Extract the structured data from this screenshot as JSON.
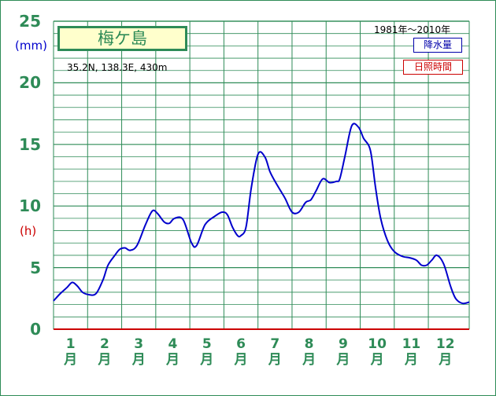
{
  "chart_data": {
    "type": "line",
    "title": "梅ケ島",
    "location_info": "35.2N,  138.3E,  430m",
    "period": "1981年〜2010年",
    "left_units": [
      "(mm)",
      "(h)"
    ],
    "legend": [
      "降水量",
      "日照時間"
    ],
    "yticks": [
      "0",
      "5",
      "10",
      "15",
      "20",
      "25"
    ],
    "ylim": [
      0,
      25
    ],
    "xlim": [
      0.5,
      12.7
    ],
    "grid": true,
    "categories": [
      {
        "num": "1",
        "suffix": "月"
      },
      {
        "num": "2",
        "suffix": "月"
      },
      {
        "num": "3",
        "suffix": "月"
      },
      {
        "num": "4",
        "suffix": "月"
      },
      {
        "num": "5",
        "suffix": "月"
      },
      {
        "num": "6",
        "suffix": "月"
      },
      {
        "num": "7",
        "suffix": "月"
      },
      {
        "num": "8",
        "suffix": "月"
      },
      {
        "num": "9",
        "suffix": "月"
      },
      {
        "num": "10",
        "suffix": "月"
      },
      {
        "num": "11",
        "suffix": "月"
      },
      {
        "num": "12",
        "suffix": "月"
      }
    ],
    "series": [
      {
        "name": "降水量",
        "color": "#0000cc",
        "x": [
          0.5,
          0.7,
          0.9,
          1.05,
          1.2,
          1.35,
          1.55,
          1.75,
          1.95,
          2.1,
          2.3,
          2.45,
          2.6,
          2.75,
          2.95,
          3.2,
          3.4,
          3.55,
          3.75,
          3.9,
          4.05,
          4.3,
          4.55,
          4.7,
          4.95,
          5.25,
          5.45,
          5.6,
          5.75,
          5.9,
          6.0,
          6.15,
          6.3,
          6.5,
          6.7,
          6.85,
          7.0,
          7.15,
          7.3,
          7.5,
          7.7,
          7.9,
          8.05,
          8.2,
          8.4,
          8.6,
          8.8,
          8.9,
          9.05,
          9.25,
          9.45,
          9.6,
          9.8,
          9.95,
          10.1,
          10.3,
          10.5,
          10.75,
          10.95,
          11.15,
          11.3,
          11.45,
          11.6,
          11.75,
          11.95,
          12.15,
          12.3,
          12.5,
          12.7
        ],
        "values": [
          2.3,
          2.9,
          3.4,
          3.8,
          3.5,
          3.0,
          2.8,
          2.9,
          4.0,
          5.2,
          6.0,
          6.5,
          6.6,
          6.4,
          6.8,
          8.5,
          9.6,
          9.4,
          8.7,
          8.6,
          9.0,
          8.9,
          7.0,
          6.8,
          8.5,
          9.2,
          9.5,
          9.3,
          8.3,
          7.6,
          7.6,
          8.3,
          11.4,
          14.2,
          14.0,
          12.8,
          12.0,
          11.3,
          10.6,
          9.5,
          9.5,
          10.3,
          10.5,
          11.2,
          12.2,
          11.9,
          12.0,
          12.2,
          14.0,
          16.5,
          16.4,
          15.5,
          14.5,
          11.5,
          9.0,
          7.2,
          6.3,
          5.9,
          5.8,
          5.6,
          5.2,
          5.2,
          5.6,
          6.0,
          5.3,
          3.5,
          2.5,
          2.1,
          2.2
        ]
      }
    ]
  }
}
